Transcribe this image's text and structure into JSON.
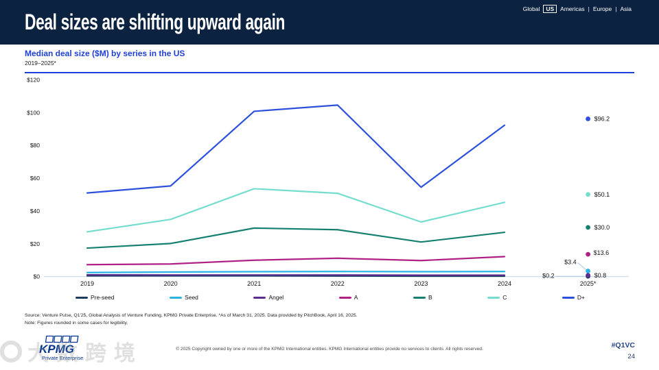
{
  "header": {
    "title": "Deal sizes are shifting upward again",
    "region_nav": {
      "items": [
        "Global",
        "US",
        "Americas",
        "Europe",
        "Asia"
      ],
      "selected": "US"
    }
  },
  "chart_header": {
    "title": "Median deal size ($M) by series in the US",
    "subtitle": "2019–2025*"
  },
  "chart_data": {
    "type": "line",
    "title": "Median deal size ($M) by series in the US",
    "subtitle": "2019–2025*",
    "x_labels": [
      "2019",
      "2020",
      "2021",
      "2022",
      "2023",
      "2024",
      "2025*"
    ],
    "ylim": [
      0,
      120
    ],
    "y_ticks": [
      "$0",
      "$20",
      "$40",
      "$60",
      "$80",
      "$100",
      "$120"
    ],
    "grid": false,
    "legend_position": "bottom",
    "note": "Lines drawn 2019–2024; 2025* values shown as labeled dots",
    "series": [
      {
        "name": "Pre-seed",
        "color": "#1f3a5f",
        "values": [
          0.5,
          0.5,
          0.5,
          0.4,
          0.3,
          0.3,
          0.2
        ],
        "end_label": "$0.2",
        "end_label_side": "far-left"
      },
      {
        "name": "Seed",
        "color": "#29b2e6",
        "values": [
          2.5,
          2.8,
          3.0,
          3.1,
          3.0,
          3.1,
          3.4
        ],
        "end_label": "$3.4",
        "end_label_side": "up-left"
      },
      {
        "name": "Angel",
        "color": "#5c2d91",
        "values": [
          1.1,
          1.0,
          1.0,
          1.0,
          0.9,
          0.9,
          0.8
        ],
        "end_label": "$0.8",
        "end_label_side": "right"
      },
      {
        "name": "A",
        "color": "#b01f84",
        "values": [
          7.3,
          7.7,
          10.0,
          11.2,
          9.8,
          12.2,
          13.6
        ],
        "end_label": "$13.6",
        "end_label_side": "right-up"
      },
      {
        "name": "B",
        "color": "#15806f",
        "values": [
          17.4,
          20.2,
          29.6,
          28.6,
          21.1,
          27.0,
          30.0
        ],
        "end_label": "$30.0",
        "end_label_side": "right"
      },
      {
        "name": "C",
        "color": "#74ddcd",
        "values": [
          27.3,
          34.9,
          53.6,
          50.8,
          33.3,
          45.3,
          50.1
        ],
        "end_label": "$50.1",
        "end_label_side": "right"
      },
      {
        "name": "D+",
        "color": "#2c50dd",
        "values": [
          51.0,
          55.3,
          100.8,
          104.6,
          54.5,
          92.3,
          96.2
        ],
        "end_label": "$96.2",
        "end_label_side": "right"
      }
    ]
  },
  "source": {
    "line1": "Source: Venture Pulse, Q1'25, Global Analysis of Venture Funding, KPMG Private Enterprise. *As of March 31, 2025. Data provided by PitchBook, April 16, 2025.",
    "line2": "Note: Figures rounded in some cases for legibility."
  },
  "footer": {
    "logo_text": "KPMG",
    "logo_subtext": "Private Enterprise",
    "copyright": "© 2025 Copyright owned by one or more of the KPMG International entities. KPMG International entities provide no services to clients. All rights reserved.",
    "hashtag": "#Q1VC",
    "page_number": "24"
  },
  "watermark": {
    "text": "大数跨境"
  },
  "colors": {
    "header_bg": "#0b2240",
    "accent_blue": "#1e40d8",
    "axis_line": "#c9d9f0",
    "leader_line": "#a9c6e8",
    "footer_navy": "#24418f",
    "logo_blue": "#00338D"
  }
}
